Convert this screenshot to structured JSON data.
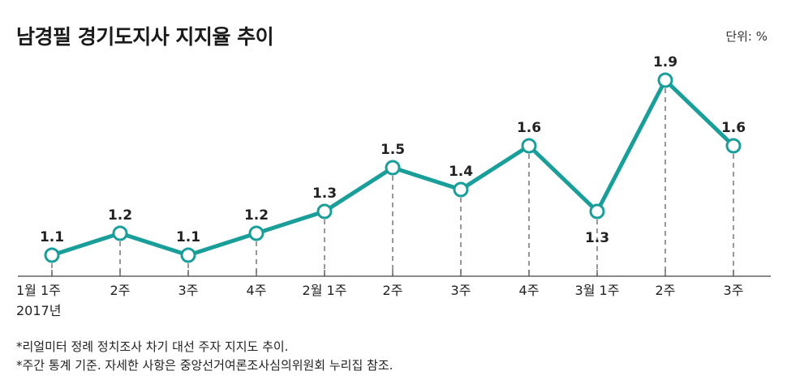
{
  "title": "남경필 경기도지사 지지율 추이",
  "unit": "단위: %",
  "chart_data": {
    "type": "line",
    "title": "남경필 경기도지사 지지율 추이",
    "xlabel": "",
    "ylabel": "단위: %",
    "categories": [
      "1월 1주",
      "2주",
      "3주",
      "4주",
      "2월 1주",
      "2주",
      "3주",
      "4주",
      "3월 1주",
      "2주",
      "3주"
    ],
    "year_label": "2017년",
    "series": [
      {
        "name": "지지율",
        "values": [
          1.1,
          1.2,
          1.1,
          1.2,
          1.3,
          1.5,
          1.4,
          1.6,
          1.3,
          1.9,
          1.6
        ]
      }
    ],
    "value_labels": [
      "1.1",
      "1.2",
      "1.1",
      "1.2",
      "1.3",
      "1.5",
      "1.4",
      "1.6",
      "1.3",
      "1.9",
      "1.6"
    ],
    "ylim": [
      1.0,
      2.0
    ],
    "grid": false,
    "line_color": "#1a9e9a"
  },
  "notes": [
    "*리얼미터 정례 정치조사 차기 대선 주자 지지도 추이.",
    "*주간 통계 기준. 자세한 사항은 중앙선거여론조사심의위원회 누리집 참조."
  ]
}
